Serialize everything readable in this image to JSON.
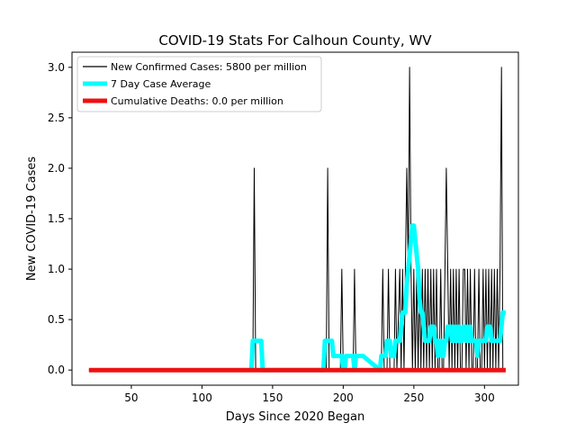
{
  "chart_data": {
    "type": "line",
    "title": "COVID-19 Stats For Calhoun County, WV",
    "xlabel": "Days Since 2020 Began",
    "ylabel": "New COVID-19 Cases",
    "xlim": [
      8,
      324
    ],
    "ylim": [
      -0.15,
      3.15
    ],
    "xticks": [
      50,
      100,
      150,
      200,
      250,
      300
    ],
    "xtick_labels": [
      "50",
      "100",
      "150",
      "200",
      "250",
      "300"
    ],
    "yticks": [
      0,
      0.5,
      1,
      1.5,
      2,
      2.5,
      3
    ],
    "ytick_labels": [
      "0.0",
      "0.5",
      "1.0",
      "1.5",
      "2.0",
      "2.5",
      "3.0"
    ],
    "grid": false,
    "legend_position": "top-left",
    "series": [
      {
        "name": "New Confirmed Cases: 5800 per million",
        "color": "#000000",
        "kind": "thin-line",
        "x": [
          20,
          136,
          137,
          138,
          188,
          189,
          190,
          198,
          199,
          200,
          207,
          208,
          209,
          227,
          228,
          229,
          231,
          232,
          233,
          236,
          237,
          238,
          240,
          241,
          242,
          243,
          244,
          245,
          246,
          247,
          248,
          249,
          250,
          251,
          252,
          253,
          254,
          255,
          256,
          257,
          258,
          259,
          260,
          261,
          262,
          263,
          264,
          265,
          266,
          267,
          268,
          269,
          270,
          271,
          272,
          273,
          274,
          275,
          276,
          277,
          278,
          279,
          280,
          281,
          282,
          283,
          284,
          285,
          286,
          287,
          288,
          289,
          290,
          291,
          292,
          293,
          294,
          295,
          296,
          297,
          298,
          299,
          300,
          301,
          302,
          303,
          304,
          305,
          306,
          307,
          308,
          309,
          310,
          311,
          312,
          313,
          314,
          315
        ],
        "y": [
          0,
          0,
          2,
          0,
          0,
          2,
          0,
          0,
          1,
          0,
          0,
          1,
          0,
          0,
          1,
          0,
          0,
          1,
          0,
          0,
          1,
          0,
          1,
          0,
          1,
          0,
          1,
          2,
          1,
          3,
          1,
          0,
          1,
          0,
          1,
          0,
          1,
          0,
          1,
          0,
          1,
          0,
          1,
          0,
          1,
          0,
          1,
          0,
          1,
          0,
          0,
          1,
          0,
          0,
          1,
          2,
          1,
          0,
          1,
          0,
          1,
          0,
          1,
          0,
          1,
          0,
          0,
          1,
          1,
          0,
          1,
          0,
          1,
          0,
          0,
          1,
          0,
          0,
          1,
          0,
          0,
          1,
          0,
          1,
          0,
          1,
          0,
          1,
          0,
          1,
          0,
          1,
          0,
          1,
          3,
          0,
          0,
          0
        ]
      },
      {
        "name": "7 Day Case Average",
        "color": "#00ffff",
        "kind": "thick-line",
        "x": [
          135,
          136,
          137,
          138,
          139,
          140,
          141,
          142,
          143,
          186,
          187,
          188,
          189,
          190,
          191,
          192,
          193,
          194,
          195,
          196,
          197,
          198,
          199,
          200,
          201,
          202,
          203,
          204,
          205,
          206,
          207,
          208,
          209,
          210,
          211,
          212,
          213,
          214,
          226,
          227,
          228,
          229,
          230,
          231,
          232,
          233,
          234,
          235,
          236,
          237,
          238,
          239,
          240,
          241,
          242,
          243,
          244,
          245,
          246,
          247,
          248,
          249,
          250,
          251,
          252,
          253,
          254,
          255,
          256,
          257,
          258,
          259,
          260,
          261,
          262,
          263,
          264,
          265,
          266,
          267,
          268,
          269,
          270,
          271,
          272,
          273,
          274,
          275,
          276,
          277,
          278,
          279,
          280,
          281,
          282,
          283,
          284,
          285,
          286,
          287,
          288,
          289,
          290,
          291,
          292,
          293,
          294,
          295,
          296,
          297,
          298,
          299,
          300,
          301,
          302,
          303,
          304,
          305,
          306,
          307,
          308,
          309,
          310,
          311,
          312,
          313,
          314,
          315
        ],
        "y": [
          0,
          0.29,
          0.29,
          0.29,
          0.29,
          0.29,
          0.29,
          0.29,
          0,
          0,
          0.29,
          0.29,
          0.29,
          0.29,
          0.29,
          0.29,
          0.14,
          0.14,
          0.14,
          0.14,
          0.14,
          0.14,
          0.14,
          0,
          0,
          0.14,
          0.14,
          0.14,
          0.14,
          0.14,
          0.14,
          0,
          0.14,
          0.14,
          0.14,
          0.14,
          0.14,
          0.14,
          0,
          0.14,
          0.14,
          0.14,
          0.14,
          0.29,
          0.29,
          0.29,
          0.14,
          0.14,
          0.14,
          0.29,
          0.29,
          0.29,
          0.29,
          0.43,
          0.57,
          0.57,
          0.57,
          0.86,
          1.0,
          1.14,
          1.29,
          1.43,
          1.43,
          1.29,
          1.14,
          1.0,
          0.71,
          0.57,
          0.57,
          0.43,
          0.29,
          0.29,
          0.29,
          0.29,
          0.43,
          0.43,
          0.43,
          0.29,
          0.29,
          0.14,
          0.29,
          0.29,
          0.14,
          0.14,
          0.29,
          0.29,
          0.43,
          0.43,
          0.43,
          0.29,
          0.43,
          0.29,
          0.43,
          0.29,
          0.43,
          0.29,
          0.29,
          0.43,
          0.43,
          0.29,
          0.43,
          0.29,
          0.43,
          0.29,
          0.29,
          0.29,
          0.29,
          0.14,
          0.29,
          0.29,
          0.29,
          0.29,
          0.29,
          0.29,
          0.43,
          0.43,
          0.43,
          0.29,
          0.29,
          0.29,
          0.29,
          0.29,
          0.29,
          0.29,
          0.43,
          0.57,
          0.57,
          0.57
        ]
      },
      {
        "name": "Cumulative Deaths: 0.0 per million",
        "color": "#ee1111",
        "kind": "thick-line",
        "x": [
          20,
          315
        ],
        "y": [
          0,
          0
        ]
      }
    ]
  }
}
